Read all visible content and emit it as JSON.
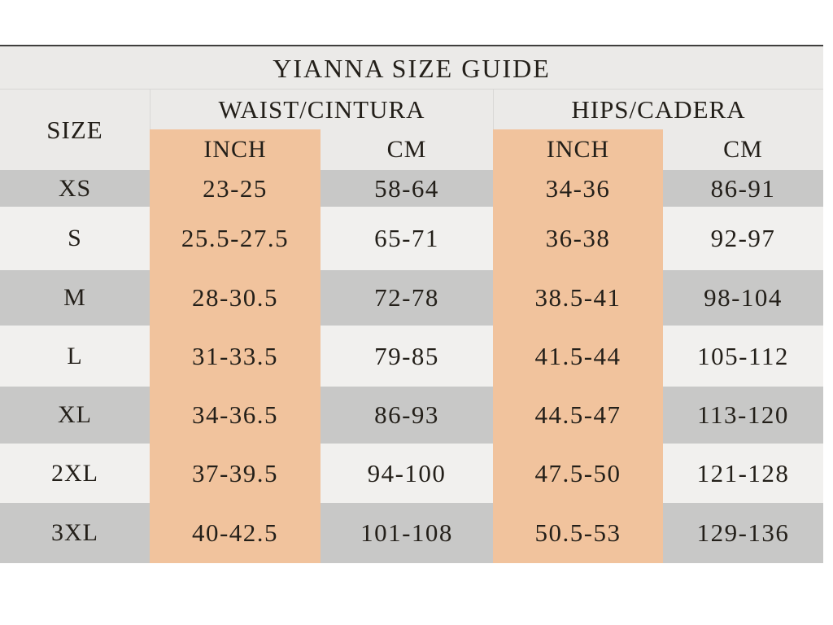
{
  "table": {
    "title": "YIANNA SIZE GUIDE",
    "size_header": "SIZE",
    "waist_header": "WAIST/CINTURA",
    "hips_header": "HIPS/CADERA",
    "unit_inch": "INCH",
    "unit_cm": "CM",
    "rows": [
      {
        "size": "XS",
        "waist_inch": "23-25",
        "waist_cm": "58-64",
        "hips_inch": "34-36",
        "hips_cm": "86-91"
      },
      {
        "size": "S",
        "waist_inch": "25.5-27.5",
        "waist_cm": "65-71",
        "hips_inch": "36-38",
        "hips_cm": "92-97"
      },
      {
        "size": "M",
        "waist_inch": "28-30.5",
        "waist_cm": "72-78",
        "hips_inch": "38.5-41",
        "hips_cm": "98-104"
      },
      {
        "size": "L",
        "waist_inch": "31-33.5",
        "waist_cm": "79-85",
        "hips_inch": "41.5-44",
        "hips_cm": "105-112"
      },
      {
        "size": "XL",
        "waist_inch": "34-36.5",
        "waist_cm": "86-93",
        "hips_inch": "44.5-47",
        "hips_cm": "113-120"
      },
      {
        "size": "2XL",
        "waist_inch": "37-39.5",
        "waist_cm": "94-100",
        "hips_inch": "47.5-50",
        "hips_cm": "121-128"
      },
      {
        "size": "3XL",
        "waist_inch": "40-42.5",
        "waist_cm": "101-108",
        "hips_inch": "50.5-53",
        "hips_cm": "129-136"
      }
    ],
    "colors": {
      "accent_peach": "#f1c39d",
      "row_gray": "#c8c8c7",
      "row_light": "#f1f0ee",
      "header_bg": "#ebeae8",
      "top_border": "#3f3f3d"
    }
  },
  "chart_data": {
    "type": "table",
    "title": "YIANNA SIZE GUIDE",
    "columns": [
      "SIZE",
      "WAIST/CINTURA INCH",
      "WAIST/CINTURA CM",
      "HIPS/CADERA INCH",
      "HIPS/CADERA CM"
    ],
    "rows": [
      [
        "XS",
        "23-25",
        "58-64",
        "34-36",
        "86-91"
      ],
      [
        "S",
        "25.5-27.5",
        "65-71",
        "36-38",
        "92-97"
      ],
      [
        "M",
        "28-30.5",
        "72-78",
        "38.5-41",
        "98-104"
      ],
      [
        "L",
        "31-33.5",
        "79-85",
        "41.5-44",
        "105-112"
      ],
      [
        "XL",
        "34-36.5",
        "86-93",
        "44.5-47",
        "113-120"
      ],
      [
        "2XL",
        "37-39.5",
        "94-100",
        "47.5-50",
        "121-128"
      ],
      [
        "3XL",
        "40-42.5",
        "101-108",
        "50.5-53",
        "129-136"
      ]
    ],
    "layout_hints": {
      "inch_columns_highlighted": true,
      "row_striping": [
        "gray",
        "light"
      ],
      "header_spans": {
        "WAIST/CINTURA": [
          "INCH",
          "CM"
        ],
        "HIPS/CADERA": [
          "INCH",
          "CM"
        ]
      }
    }
  }
}
